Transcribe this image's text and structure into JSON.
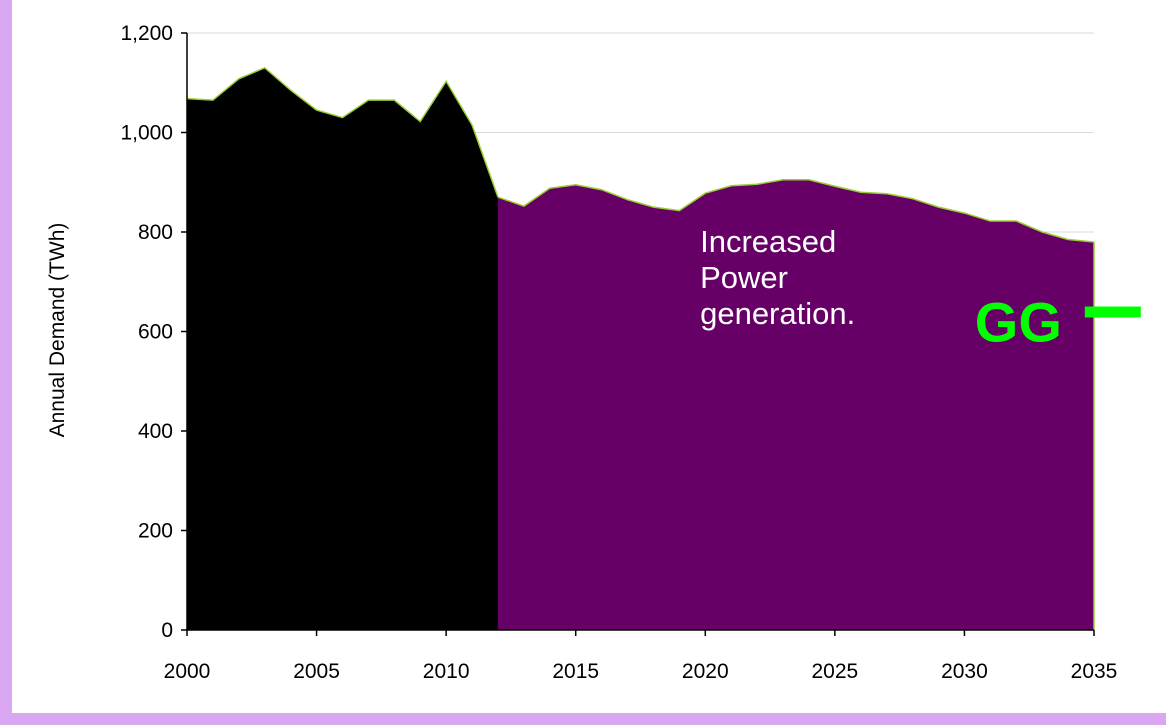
{
  "colors": {
    "page_border": "#d9a7f2",
    "historical": "#000000",
    "projected": "#660066",
    "outline": "#9acd32",
    "annotation_text": "#ffffff",
    "badge": "#00ff00",
    "grid": "#d9d9d9"
  },
  "chart_data": {
    "type": "area",
    "title": "",
    "xlabel": "",
    "ylabel": "Annual Demand (TWh)",
    "xlim": [
      2000,
      2035
    ],
    "ylim": [
      0,
      1200
    ],
    "grid": "horizontal",
    "x_ticks": [
      "2000",
      "2005",
      "2010",
      "2015",
      "2020",
      "2025",
      "2030",
      "2035"
    ],
    "y_ticks": [
      "0",
      "200",
      "400",
      "600",
      "800",
      "1,000",
      "1,200"
    ],
    "series": [
      {
        "color": "#000000",
        "x": [
          2000,
          2001,
          2002,
          2003,
          2004,
          2005,
          2006,
          2007,
          2008,
          2009,
          2010,
          2011,
          2012
        ],
        "values": [
          1068,
          1065,
          1108,
          1130,
          1085,
          1045,
          1030,
          1065,
          1065,
          1022,
          1103,
          1015,
          870
        ]
      },
      {
        "color": "#660066",
        "x": [
          2012,
          2013,
          2014,
          2015,
          2016,
          2017,
          2018,
          2019,
          2020,
          2021,
          2022,
          2023,
          2024,
          2025,
          2026,
          2027,
          2028,
          2029,
          2030,
          2031,
          2032,
          2033,
          2034,
          2035
        ],
        "values": [
          870,
          852,
          888,
          895,
          885,
          865,
          850,
          843,
          878,
          893,
          896,
          905,
          905,
          892,
          880,
          877,
          867,
          850,
          838,
          822,
          822,
          800,
          785,
          780
        ]
      }
    ],
    "annotation": {
      "lines": [
        "Increased",
        "Power",
        "generation."
      ],
      "x": 2019.8,
      "y": 760
    },
    "badge": {
      "text": "GG",
      "x": 2030.4,
      "y": 600
    }
  }
}
